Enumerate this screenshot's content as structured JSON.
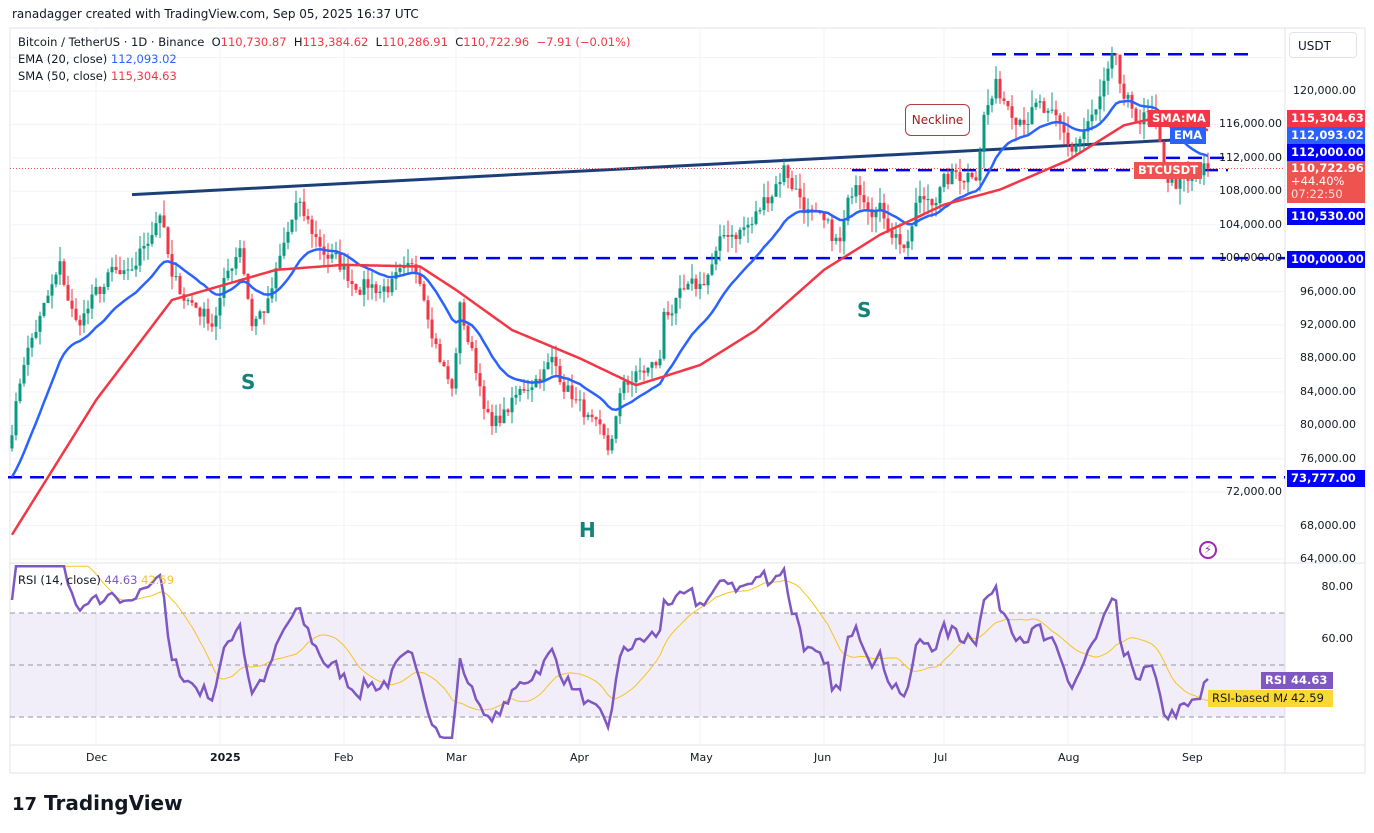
{
  "credit": "ranadagger created with TradingView.com, Sep 05, 2025 16:37 UTC",
  "symbol": {
    "title": "Bitcoin / TetherUS · 1D · Binance",
    "open_label": "O",
    "open": "110,730.87",
    "high_label": "H",
    "high": "113,384.62",
    "low_label": "L",
    "low": "110,286.91",
    "close_label": "C",
    "close": "110,722.96",
    "change": "−7.91 (−0.01%)"
  },
  "indicators": {
    "ema": {
      "label": "EMA (20, close)",
      "value": "112,093.02",
      "color": "#2962ff"
    },
    "sma": {
      "label": "SMA (50, close)",
      "value": "115,304.63",
      "color": "#f23645"
    },
    "rsi": {
      "label": "RSI (14, close)",
      "value": "44.63",
      "ma_value": "42.59",
      "color": "#7e57c2",
      "ma_color": "#f7c325"
    }
  },
  "currency": "USDT",
  "badges": {
    "sma_tag": "SMA:MA",
    "sma_value": "115,304.63",
    "ema_tag": "EMA",
    "ema_value": "112,093.02",
    "level_112": "112,000.00",
    "symbol_tag": "BTCUSDT",
    "last_price": "110,722.96",
    "last_change": "+44.40%",
    "countdown": "07:22:50",
    "level_110": "110,530.00",
    "level_100": "100,000.00",
    "level_73": "73,777.00",
    "rsi_tag": "RSI",
    "rsi_value": "44.63",
    "rsi_ma_tag": "RSI-based MA",
    "rsi_ma_value": "42.59"
  },
  "annotations": {
    "neckline": "Neckline",
    "left_shoulder": "S",
    "head": "H",
    "right_shoulder": "S"
  },
  "logo": "TradingView",
  "chart_data": {
    "type": "candlestick",
    "title": "Bitcoin / TetherUS · 1D · Binance",
    "ylim": [
      62000,
      126000
    ],
    "price_ticks": [
      "120,000.00",
      "116,000.00",
      "112,000.00",
      "108,000.00",
      "104,000.00",
      "100,000.00",
      "96,000.00",
      "92,000.00",
      "88,000.00",
      "84,000.00",
      "80,000.00",
      "76,000.00",
      "72,000.00",
      "68,000.00",
      "64,000.00"
    ],
    "time_ticks": [
      "Dec",
      "2025",
      "Feb",
      "Mar",
      "Apr",
      "May",
      "Jun",
      "Jul",
      "Aug",
      "Sep"
    ],
    "rsi_ticks": [
      "80.00",
      "60.00"
    ],
    "rsi_bands": [
      70,
      50,
      30
    ],
    "colors": {
      "up": "#089981",
      "down": "#f23645",
      "level": "#0000ff",
      "neckline": "#1c3f7a"
    },
    "close_keypoints": [
      [
        "2024-11-10",
        79800
      ],
      [
        "2024-11-13",
        88000
      ],
      [
        "2024-11-22",
        98500
      ],
      [
        "2024-11-26",
        92000
      ],
      [
        "2024-12-05",
        98000
      ],
      [
        "2024-12-09",
        97000
      ],
      [
        "2024-12-17",
        106000
      ],
      [
        "2024-12-20",
        97000
      ],
      [
        "2024-12-30",
        92500
      ],
      [
        "2025-01-06",
        102000
      ],
      [
        "2025-01-09",
        92500
      ],
      [
        "2025-01-13",
        94500
      ],
      [
        "2025-01-20",
        106000
      ],
      [
        "2025-01-27",
        101000
      ],
      [
        "2025-02-03",
        97500
      ],
      [
        "2025-02-10",
        96500
      ],
      [
        "2025-02-20",
        98000
      ],
      [
        "2025-02-25",
        88500
      ],
      [
        "2025-02-28",
        84000
      ],
      [
        "2025-03-02",
        94000
      ],
      [
        "2025-03-10",
        79500
      ],
      [
        "2025-03-20",
        85500
      ],
      [
        "2025-03-25",
        87500
      ],
      [
        "2025-04-06",
        78500
      ],
      [
        "2025-04-08",
        76500
      ],
      [
        "2025-04-12",
        85000
      ],
      [
        "2025-04-21",
        87500
      ],
      [
        "2025-04-22",
        93500
      ],
      [
        "2025-05-01",
        96500
      ],
      [
        "2025-05-08",
        103000
      ],
      [
        "2025-05-14",
        104000
      ],
      [
        "2025-05-22",
        111000
      ],
      [
        "2025-05-30",
        104000
      ],
      [
        "2025-06-05",
        101500
      ],
      [
        "2025-06-09",
        110000
      ],
      [
        "2025-06-17",
        104500
      ],
      [
        "2025-06-22",
        101000
      ],
      [
        "2025-06-24",
        106000
      ],
      [
        "2025-07-03",
        109500
      ],
      [
        "2025-07-09",
        111000
      ],
      [
        "2025-07-11",
        117500
      ],
      [
        "2025-07-14",
        120000
      ],
      [
        "2025-07-20",
        118000
      ],
      [
        "2025-07-25",
        117500
      ],
      [
        "2025-08-02",
        113000
      ],
      [
        "2025-08-08",
        117000
      ],
      [
        "2025-08-13",
        123300
      ],
      [
        "2025-08-15",
        117500
      ],
      [
        "2025-08-22",
        116500
      ],
      [
        "2025-08-25",
        110000
      ],
      [
        "2025-08-31",
        108300
      ],
      [
        "2025-09-05",
        110722.96
      ]
    ],
    "sma50_keypoints": [
      [
        "2024-11-10",
        66900
      ],
      [
        "2024-12-01",
        83000
      ],
      [
        "2024-12-20",
        95000
      ],
      [
        "2025-01-15",
        98600
      ],
      [
        "2025-02-01",
        99200
      ],
      [
        "2025-02-20",
        99000
      ],
      [
        "2025-03-01",
        96200
      ],
      [
        "2025-03-15",
        91400
      ],
      [
        "2025-04-01",
        88000
      ],
      [
        "2025-04-15",
        84800
      ],
      [
        "2025-05-01",
        87200
      ],
      [
        "2025-05-15",
        91400
      ],
      [
        "2025-06-01",
        98600
      ],
      [
        "2025-06-15",
        102800
      ],
      [
        "2025-07-01",
        106400
      ],
      [
        "2025-07-15",
        108200
      ],
      [
        "2025-08-01",
        111700
      ],
      [
        "2025-08-15",
        115900
      ],
      [
        "2025-08-25",
        117000
      ],
      [
        "2025-09-05",
        115304.63
      ]
    ],
    "horizontal_levels": [
      124400,
      112000,
      110530,
      100000,
      73777
    ],
    "neckline": [
      [
        "2024-12-10",
        107600
      ],
      [
        "2025-09-03",
        114300
      ]
    ]
  }
}
